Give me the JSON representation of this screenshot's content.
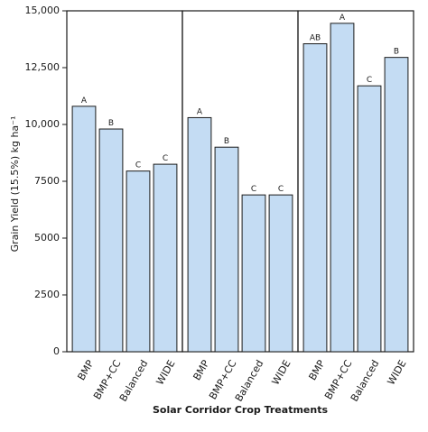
{
  "chart_data": {
    "type": "bar",
    "xlabel": "Solar Corridor Crop Treatments",
    "ylabel": "Grain Yield (15.5%) kg ha⁻¹",
    "ylim": [
      0,
      15000
    ],
    "yticks": [
      0,
      2500,
      5000,
      7500,
      10000,
      12500,
      15000
    ],
    "ytick_labels": [
      "0",
      "2500",
      "5000",
      "7500",
      "10,000",
      "12,500",
      "15,000"
    ],
    "categories": [
      "BMP",
      "BMP+CC",
      "Balanced",
      "WIDE"
    ],
    "grid": false,
    "panels": [
      {
        "values": [
          10800,
          9800,
          7950,
          8250
        ],
        "letters": [
          "A",
          "B",
          "C",
          "C"
        ]
      },
      {
        "values": [
          10300,
          9000,
          6900,
          6900
        ],
        "letters": [
          "A",
          "B",
          "C",
          "C"
        ]
      },
      {
        "values": [
          13550,
          14450,
          11700,
          12950
        ],
        "letters": [
          "AB",
          "A",
          "C",
          "B"
        ]
      }
    ]
  }
}
